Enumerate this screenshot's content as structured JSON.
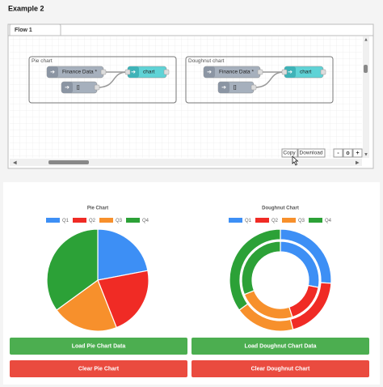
{
  "header": {
    "title": "Example 2"
  },
  "editor": {
    "tab": "Flow 1",
    "groups": [
      {
        "label": "Pie chart",
        "nodes": [
          "Finance Data *",
          "[]",
          "chart"
        ]
      },
      {
        "label": "Doughnut chart",
        "nodes": [
          "Finance Data *",
          "[]",
          "chart"
        ]
      }
    ],
    "toolbar": [
      "Copy",
      "Download"
    ],
    "zoom": [
      "-",
      "o",
      "+"
    ]
  },
  "chart_data": [
    {
      "type": "pie",
      "title": "Pie Chart",
      "categories": [
        "Q1",
        "Q2",
        "Q3",
        "Q4"
      ],
      "colors": [
        "#3d8ff5",
        "#f02b25",
        "#f7902c",
        "#2ca137"
      ],
      "values": [
        22,
        22,
        21,
        35
      ]
    },
    {
      "type": "doughnut",
      "title": "Doughnut Chart",
      "categories": [
        "Q1",
        "Q2",
        "Q3",
        "Q4"
      ],
      "colors": [
        "#3d8ff5",
        "#f02b25",
        "#f7902c",
        "#2ca137"
      ],
      "series": [
        {
          "values": [
            26,
            20,
            19,
            35
          ]
        },
        {
          "values": [
            28,
            17,
            24,
            31
          ]
        }
      ]
    }
  ],
  "buttons": [
    "Load Pie Chart Data",
    "Load Doughnut Chart Data",
    "Clear Pie Chart",
    "Clear Doughnut Chart"
  ]
}
